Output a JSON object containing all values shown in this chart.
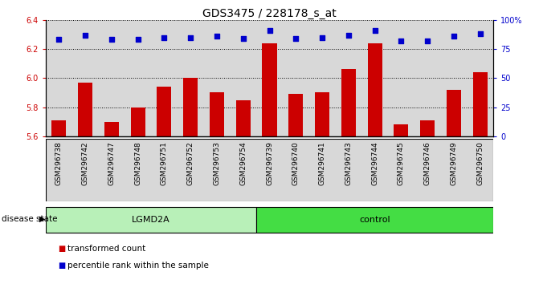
{
  "title": "GDS3475 / 228178_s_at",
  "samples": [
    "GSM296738",
    "GSM296742",
    "GSM296747",
    "GSM296748",
    "GSM296751",
    "GSM296752",
    "GSM296753",
    "GSM296754",
    "GSM296739",
    "GSM296740",
    "GSM296741",
    "GSM296743",
    "GSM296744",
    "GSM296745",
    "GSM296746",
    "GSM296749",
    "GSM296750"
  ],
  "bar_values": [
    5.71,
    5.97,
    5.7,
    5.8,
    5.94,
    6.0,
    5.9,
    5.85,
    6.24,
    5.89,
    5.9,
    6.06,
    6.24,
    5.68,
    5.71,
    5.92,
    6.04
  ],
  "percentile_values": [
    83,
    87,
    83,
    83,
    85,
    85,
    86,
    84,
    91,
    84,
    85,
    87,
    91,
    82,
    82,
    86,
    88
  ],
  "bar_color": "#cc0000",
  "dot_color": "#0000cc",
  "ylim_left": [
    5.6,
    6.4
  ],
  "ylim_right": [
    0,
    100
  ],
  "yticks_left": [
    5.6,
    5.8,
    6.0,
    6.2,
    6.4
  ],
  "yticks_right": [
    0,
    25,
    50,
    75,
    100
  ],
  "ytick_labels_right": [
    "0",
    "25",
    "50",
    "75",
    "100%"
  ],
  "groups": [
    {
      "label": "LGMD2A",
      "start": 0,
      "end": 7,
      "color": "#b8f0b8"
    },
    {
      "label": "control",
      "start": 8,
      "end": 16,
      "color": "#44dd44"
    }
  ],
  "legend_items": [
    {
      "color": "#cc0000",
      "label": "transformed count"
    },
    {
      "color": "#0000cc",
      "label": "percentile rank within the sample"
    }
  ],
  "disease_state_label": "disease state",
  "col_bg_color": "#d8d8d8",
  "title_fontsize": 10,
  "tick_fontsize": 7,
  "xtick_fontsize": 6.5,
  "legend_fontsize": 7.5
}
